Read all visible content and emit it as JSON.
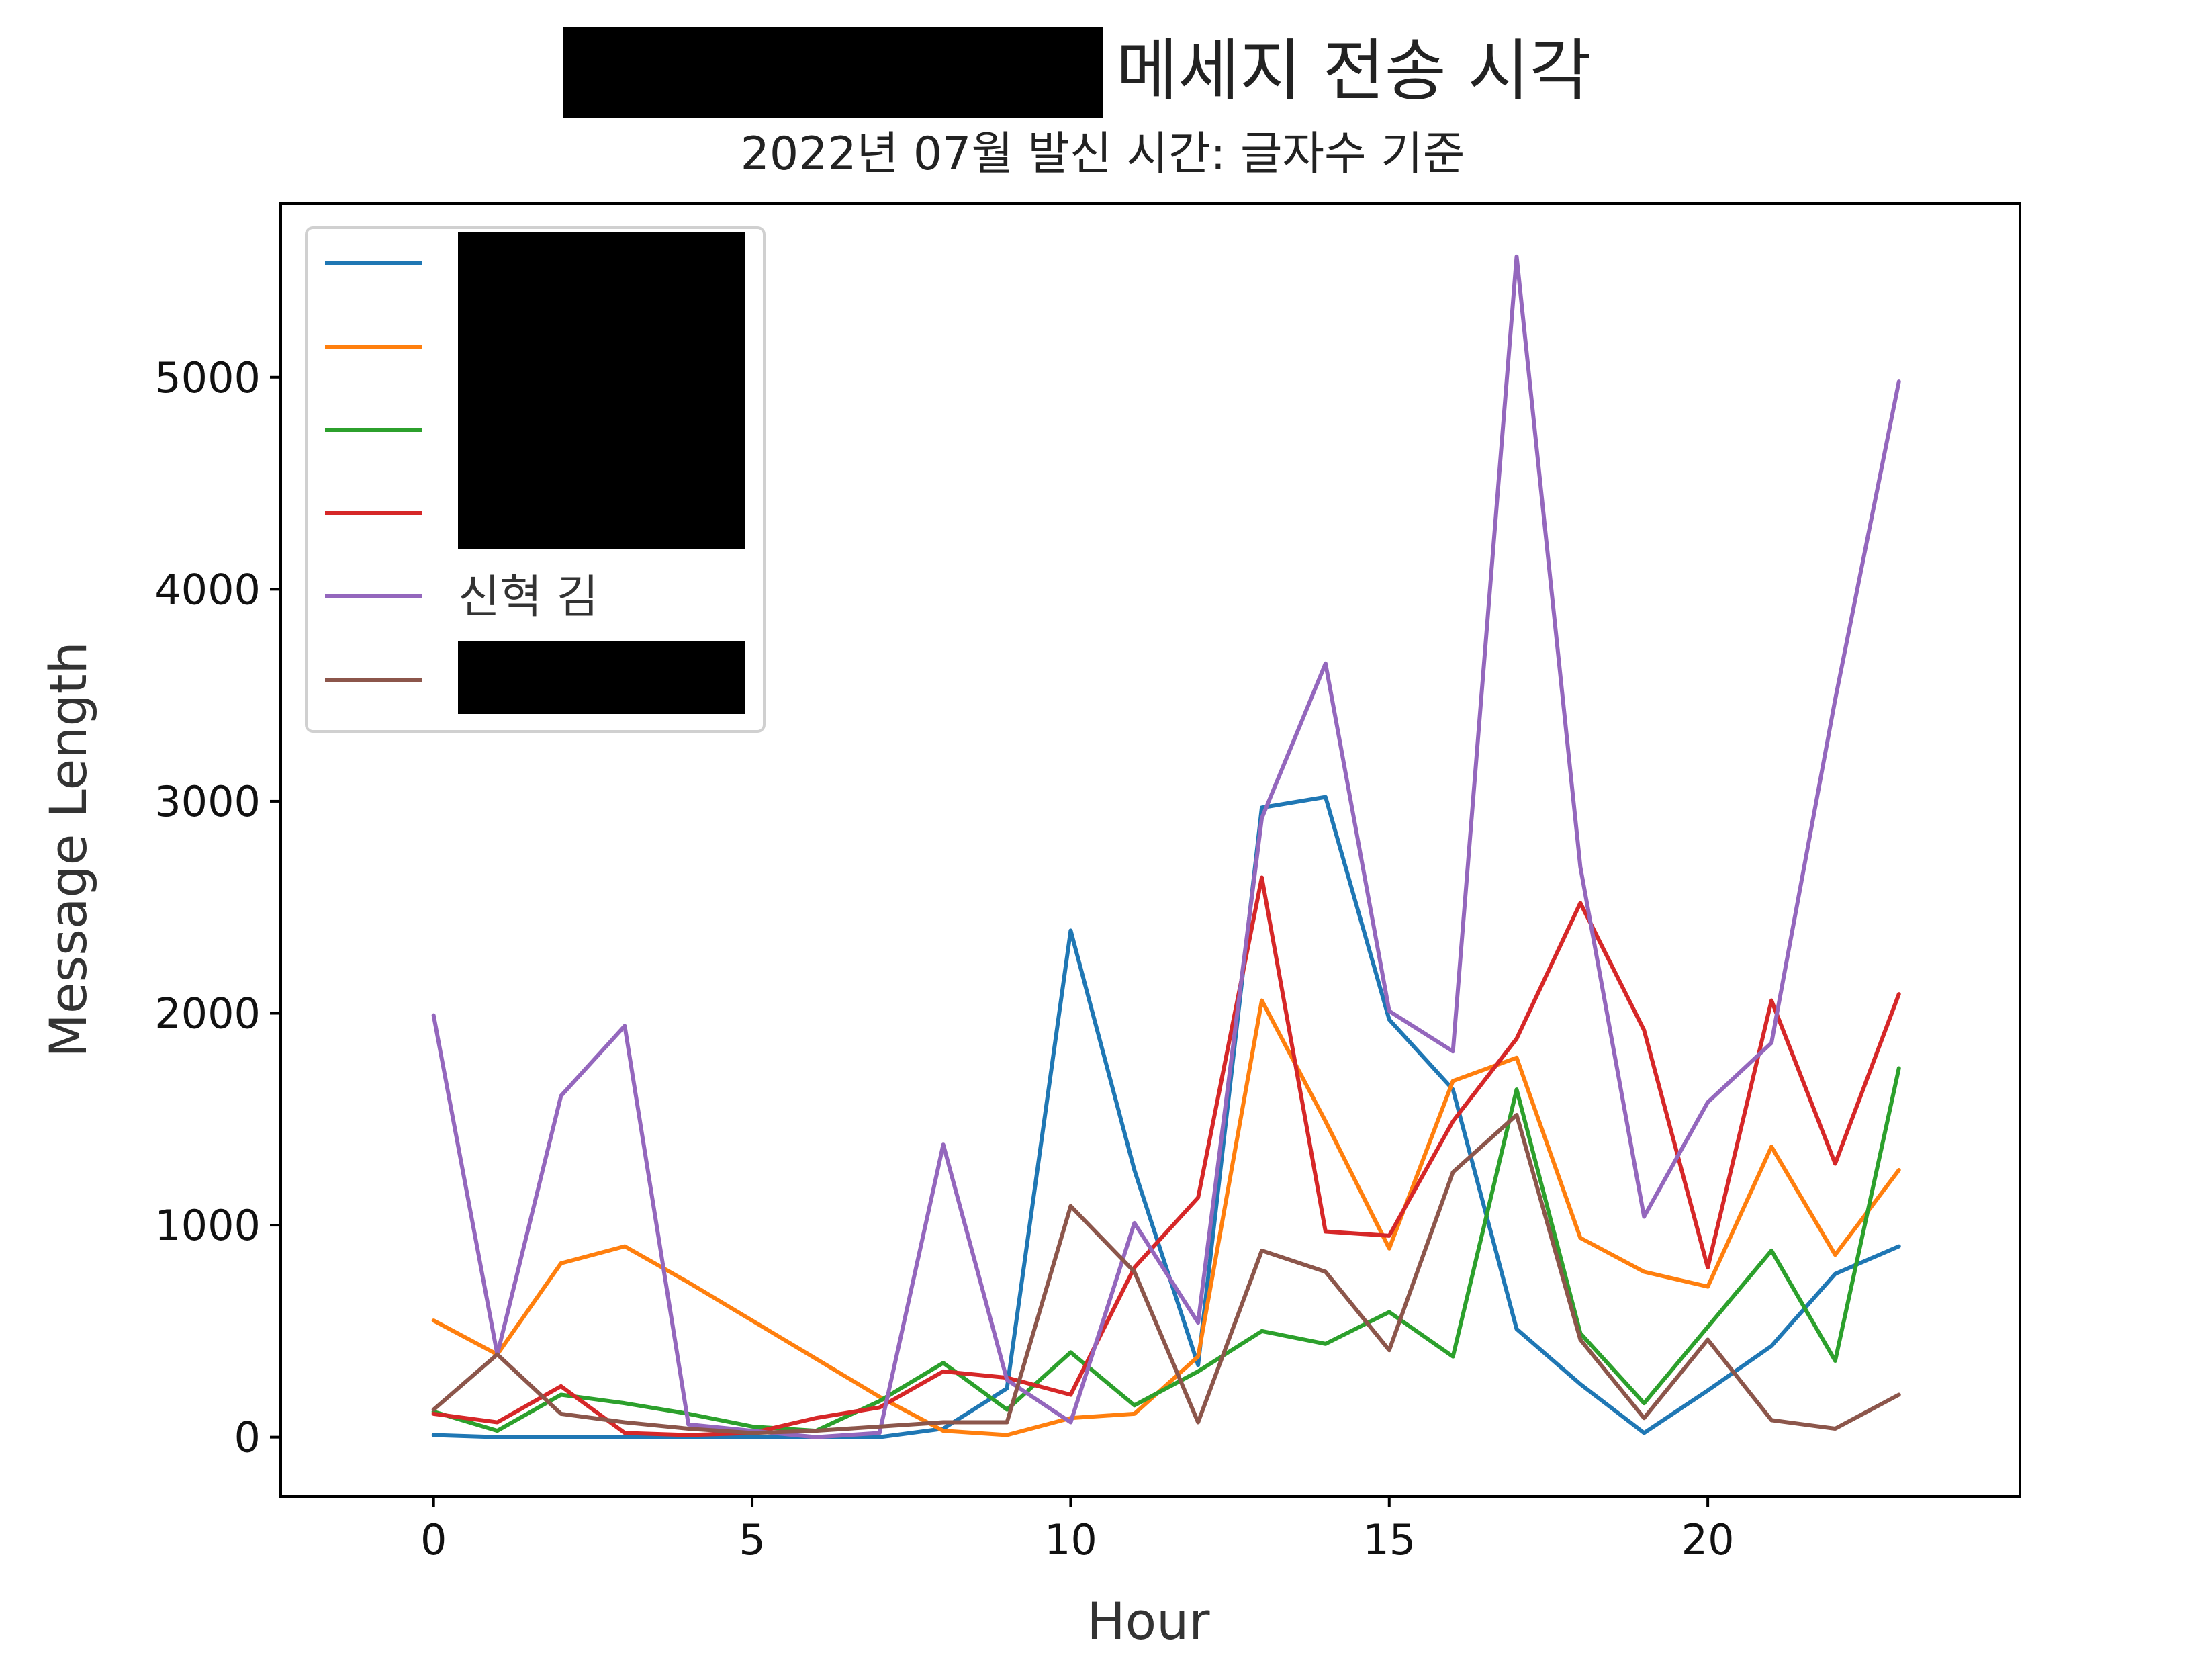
{
  "chart_data": {
    "type": "line",
    "title": "메세지 전송 시각",
    "subtitle": "2022년 07월 발신 시간: 글자수 기준",
    "xlabel": "Hour",
    "ylabel": "Message Length",
    "xlim": [
      -2.4,
      24.9
    ],
    "ylim": [
      -280,
      5820
    ],
    "xticks": [
      0,
      5,
      10,
      15,
      20
    ],
    "yticks": [
      0,
      1000,
      2000,
      3000,
      4000,
      5000
    ],
    "grid": false,
    "legend_position": "top-left",
    "x": [
      0,
      1,
      2,
      3,
      4,
      5,
      6,
      7,
      8,
      9,
      10,
      11,
      12,
      13,
      14,
      15,
      16,
      17,
      18,
      19,
      20,
      21,
      22,
      23
    ],
    "series": [
      {
        "name": "",
        "color": "#1f77b4",
        "values": [
          10,
          0,
          0,
          0,
          0,
          0,
          0,
          0,
          40,
          230,
          2390,
          1260,
          340,
          2970,
          3020,
          1970,
          1640,
          510,
          250,
          20,
          220,
          430,
          770,
          900
        ]
      },
      {
        "name": "",
        "color": "#ff7f0e",
        "values": [
          550,
          390,
          820,
          900,
          730,
          550,
          370,
          190,
          30,
          10,
          90,
          110,
          380,
          2060,
          1490,
          890,
          1680,
          1790,
          940,
          780,
          710,
          1370,
          860,
          1260
        ]
      },
      {
        "name": "",
        "color": "#2ca02c",
        "values": [
          120,
          30,
          200,
          160,
          110,
          50,
          30,
          170,
          350,
          130,
          400,
          150,
          310,
          500,
          440,
          590,
          380,
          1640,
          490,
          160,
          520,
          880,
          360,
          1740
        ]
      },
      {
        "name": "",
        "color": "#d62728",
        "values": [
          110,
          70,
          240,
          20,
          10,
          20,
          90,
          140,
          310,
          280,
          200,
          800,
          1130,
          2640,
          970,
          950,
          1490,
          1880,
          2520,
          1920,
          800,
          2060,
          1290,
          2090
        ]
      },
      {
        "name": "신혁 김",
        "color": "#9467bd",
        "values": [
          1990,
          390,
          1610,
          1940,
          60,
          30,
          0,
          20,
          1380,
          270,
          70,
          1010,
          540,
          2920,
          3650,
          2010,
          1820,
          5570,
          2690,
          1040,
          1580,
          1860,
          3480,
          4980
        ]
      },
      {
        "name": "",
        "color": "#8c564b",
        "values": [
          130,
          390,
          110,
          70,
          40,
          20,
          30,
          50,
          70,
          70,
          1090,
          780,
          70,
          880,
          780,
          410,
          1250,
          1520,
          460,
          90,
          460,
          80,
          40,
          200
        ]
      }
    ]
  }
}
